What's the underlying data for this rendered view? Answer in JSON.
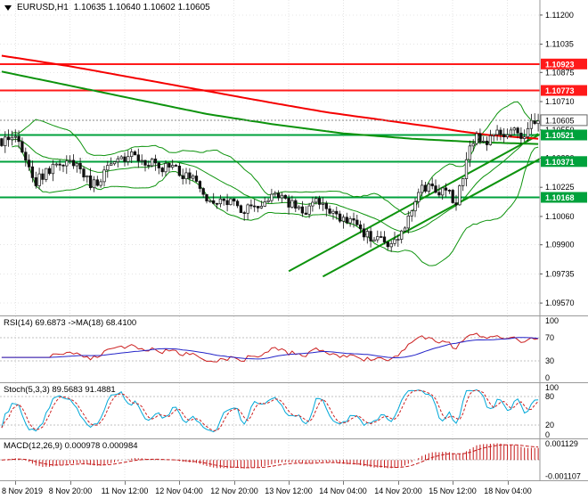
{
  "header": {
    "symbol": "EURUSD,H1",
    "ohlc": "1.10635 1.10640 1.10602 1.10605"
  },
  "colors": {
    "candle": "#111111",
    "grid": "#e4e4e4",
    "frame": "#9a9a9a",
    "dash": "#c0c0c0",
    "ma_red": "#f50000",
    "band": "#0d930d",
    "trend": "#0d930d",
    "resistance": "#ff1a1a",
    "support": "#00a23c",
    "current": "#8a8a8a",
    "rsi": "#cc2020",
    "rsi_ma": "#2424c8",
    "stoch_k": "#00a8d8",
    "stoch_d": "#cc2020",
    "macd": "#c41a1a"
  },
  "chart_data": {
    "type": "candlestick",
    "symbol": "EURUSD",
    "timeframe": "H1",
    "bars": 158,
    "price_range": [
      1.095,
      1.11285
    ],
    "price_ticks": [
      "1.11200",
      "1.11035",
      "1.10875",
      "1.10710",
      "1.10550",
      "1.10390",
      "1.10225",
      "1.10060",
      "1.09900",
      "1.09735",
      "1.09570"
    ],
    "close_path": [
      [
        0,
        1.1046
      ],
      [
        2,
        1.1051
      ],
      [
        5,
        1.1049
      ],
      [
        8,
        1.1033
      ],
      [
        10,
        1.1026
      ],
      [
        13,
        1.1031
      ],
      [
        17,
        1.1037
      ],
      [
        21,
        1.1036
      ],
      [
        24,
        1.1029
      ],
      [
        26,
        1.1023
      ],
      [
        29,
        1.1028
      ],
      [
        33,
        1.1036
      ],
      [
        38,
        1.104
      ],
      [
        43,
        1.1037
      ],
      [
        47,
        1.1033
      ],
      [
        50,
        1.1035
      ],
      [
        53,
        1.103
      ],
      [
        56,
        1.1026
      ],
      [
        59,
        1.1017
      ],
      [
        62,
        1.1012
      ],
      [
        65,
        1.1015
      ],
      [
        68,
        1.1012
      ],
      [
        71,
        1.1009
      ],
      [
        74,
        1.1012
      ],
      [
        77,
        1.1016
      ],
      [
        80,
        1.1019
      ],
      [
        83,
        1.1015
      ],
      [
        86,
        1.1012
      ],
      [
        89,
        1.101
      ],
      [
        92,
        1.1014
      ],
      [
        95,
        1.101
      ],
      [
        98,
        1.1007
      ],
      [
        101,
        1.1004
      ],
      [
        104,
        1.1
      ],
      [
        107,
        1.0996
      ],
      [
        110,
        1.0993
      ],
      [
        113,
        1.099
      ],
      [
        115,
        1.0992
      ],
      [
        118,
        1.1002
      ],
      [
        121,
        1.1013
      ],
      [
        123,
        1.1021
      ],
      [
        126,
        1.1024
      ],
      [
        128,
        1.1018
      ],
      [
        130,
        1.1022
      ],
      [
        132,
        1.1016
      ],
      [
        133,
        1.1012
      ],
      [
        135,
        1.103
      ],
      [
        137,
        1.1044
      ],
      [
        139,
        1.105
      ],
      [
        141,
        1.1047
      ],
      [
        143,
        1.1051
      ],
      [
        146,
        1.1053
      ],
      [
        149,
        1.1055
      ],
      [
        152,
        1.1052
      ],
      [
        154,
        1.1056
      ],
      [
        157,
        1.106
      ]
    ],
    "noise": 0.0006,
    "wick": 0.00045,
    "bollinger": {
      "period": 20,
      "dev": 2
    },
    "ma_red": [
      [
        0,
        1.1097
      ],
      [
        20,
        1.1091
      ],
      [
        40,
        1.1084
      ],
      [
        60,
        1.1077
      ],
      [
        80,
        1.107
      ],
      [
        95,
        1.1065
      ],
      [
        110,
        1.1061
      ],
      [
        125,
        1.1057
      ],
      [
        135,
        1.1054
      ],
      [
        143,
        1.1052
      ],
      [
        150,
        1.1051
      ],
      [
        157,
        1.105
      ]
    ],
    "ma_green": [
      [
        0,
        1.1088
      ],
      [
        20,
        1.108
      ],
      [
        40,
        1.1072
      ],
      [
        60,
        1.1064
      ],
      [
        80,
        1.1058
      ],
      [
        100,
        1.1053
      ],
      [
        120,
        1.105
      ],
      [
        140,
        1.1048
      ],
      [
        157,
        1.1047
      ]
    ],
    "trendlines": [
      {
        "from": [
          84,
          1.0975
        ],
        "to": [
          176,
          1.1072
        ]
      },
      {
        "from": [
          94,
          1.0972
        ],
        "to": [
          176,
          1.1058
        ]
      }
    ],
    "levels": {
      "resistance": [
        {
          "price": 1.10923,
          "label": "1.10923"
        },
        {
          "price": 1.10773,
          "label": "1.10773"
        }
      ],
      "support": [
        {
          "price": 1.10521,
          "label": "1.10521"
        },
        {
          "price": 1.10371,
          "label": "1.10371"
        },
        {
          "price": 1.10168,
          "label": "1.10168"
        }
      ],
      "current": {
        "price": 1.10605,
        "label": "1.10605"
      }
    },
    "time_tick_bars": [
      4,
      20,
      36,
      52,
      68,
      84,
      100,
      116,
      132,
      148
    ],
    "time_labels": [
      "8 Nov 2019",
      "8 Nov 20:00",
      "11 Nov 12:00",
      "12 Nov 04:00",
      "12 Nov 20:00",
      "13 Nov 12:00",
      "14 Nov 04:00",
      "14 Nov 20:00",
      "15 Nov 12:00",
      "18 Nov 04:00"
    ],
    "panels": {
      "rsi": {
        "label": "RSI(14) 69.6873 ->MA(18) 68.4100",
        "period": 14,
        "ma_period": 18,
        "ticks": [
          "100",
          "70",
          "30",
          "0"
        ],
        "levels": [
          70,
          30
        ],
        "values": {
          "rsi": 69.6873,
          "ma": 68.41
        }
      },
      "stoch": {
        "label": "Stoch(5,3,3) 89.5683 91.4881",
        "k": 5,
        "d": 3,
        "slowing": 3,
        "ticks": [
          "100",
          "80",
          "20",
          "0"
        ],
        "levels": [
          80,
          20
        ],
        "values": {
          "main": 89.5683,
          "signal": 91.4881
        }
      },
      "macd": {
        "label": "MACD(12,26,9) 0.000978 0.000984",
        "fast": 12,
        "slow": 26,
        "signal": 9,
        "ticks": [
          "0.001129",
          "-0.001107"
        ],
        "plot_range": [
          -0.00125,
          0.00127
        ],
        "values": {
          "macd": 0.000978,
          "signal": 0.000984
        }
      }
    }
  }
}
